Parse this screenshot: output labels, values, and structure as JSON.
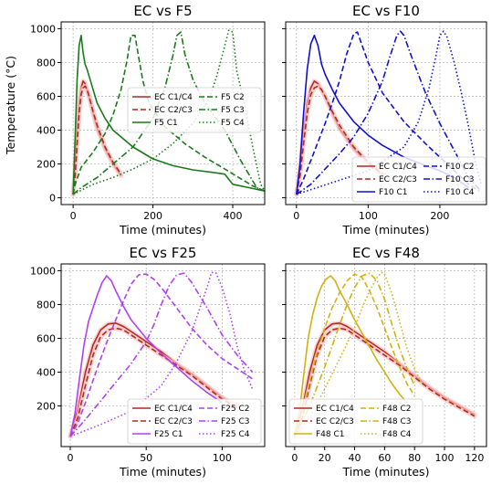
{
  "figure": {
    "ylabel": "Temperature (°C)"
  },
  "chart_data": [
    {
      "type": "line",
      "title": "EC vs F5",
      "xlabel": "Time (minutes)",
      "ylabel": "Temperature (°C)",
      "xlim": [
        -30,
        480
      ],
      "ylim": [
        -40,
        1040
      ],
      "xticks": [
        0,
        200,
        400
      ],
      "yticks": [
        0,
        200,
        400,
        600,
        800,
        1000
      ],
      "show_ylabel": true,
      "grid": true,
      "legend_position": "center-right",
      "series": [
        {
          "name": "EC C1/C4",
          "color": "#b22a1e",
          "dash": "solid",
          "highlight": true,
          "x": [
            0,
            5,
            10,
            15,
            20,
            25,
            30,
            40,
            50,
            60,
            80,
            100,
            120
          ],
          "y": [
            20,
            180,
            400,
            560,
            650,
            690,
            675,
            600,
            500,
            410,
            290,
            200,
            130
          ]
        },
        {
          "name": "EC C2/C3",
          "color": "#b22a1e",
          "dash": "dashed",
          "highlight": true,
          "x": [
            0,
            5,
            10,
            15,
            20,
            25,
            30,
            35,
            40,
            50,
            60,
            80,
            100,
            120
          ],
          "y": [
            20,
            130,
            320,
            500,
            610,
            650,
            660,
            640,
            600,
            510,
            430,
            300,
            210,
            140
          ]
        },
        {
          "name": "F5 C1",
          "color": "#1a7a1a",
          "dash": "solid",
          "x": [
            0,
            5,
            10,
            15,
            20,
            25,
            30,
            35,
            40,
            50,
            60,
            80,
            100,
            150,
            200,
            250,
            300,
            350,
            380,
            390,
            400,
            450,
            480
          ],
          "y": [
            20,
            350,
            700,
            900,
            960,
            860,
            790,
            760,
            720,
            640,
            560,
            470,
            400,
            300,
            230,
            190,
            165,
            150,
            140,
            110,
            80,
            55,
            40
          ]
        },
        {
          "name": "F5 C2",
          "color": "#1a7a1a",
          "dash": "dashed",
          "x": [
            0,
            5,
            20,
            50,
            80,
            100,
            120,
            135,
            145,
            155,
            165,
            175,
            190,
            230,
            280,
            330,
            380,
            450,
            480
          ],
          "y": [
            20,
            80,
            180,
            270,
            380,
            490,
            640,
            810,
            960,
            960,
            820,
            690,
            560,
            420,
            320,
            240,
            170,
            70,
            40
          ]
        },
        {
          "name": "F5 C3",
          "color": "#1a7a1a",
          "dash": "dashdot",
          "x": [
            0,
            20,
            60,
            100,
            150,
            200,
            230,
            250,
            260,
            270,
            280,
            300,
            330,
            380,
            420,
            460,
            480
          ],
          "y": [
            20,
            60,
            120,
            200,
            300,
            470,
            650,
            840,
            960,
            980,
            850,
            700,
            560,
            400,
            220,
            60,
            40
          ]
        },
        {
          "name": "F5 C4",
          "color": "#1a7a1a",
          "dash": "dotted",
          "x": [
            0,
            50,
            100,
            150,
            200,
            250,
            300,
            340,
            360,
            380,
            390,
            400,
            410,
            430,
            450,
            470,
            480
          ],
          "y": [
            20,
            80,
            120,
            170,
            230,
            320,
            440,
            580,
            720,
            900,
            990,
            980,
            750,
            550,
            300,
            80,
            40
          ]
        }
      ]
    },
    {
      "type": "line",
      "title": "EC vs F10",
      "xlabel": "Time (minutes)",
      "ylabel": "",
      "xlim": [
        -15,
        265
      ],
      "ylim": [
        -40,
        1040
      ],
      "xticks": [
        0,
        100,
        200
      ],
      "yticks": [
        0,
        200,
        400,
        600,
        800,
        1000
      ],
      "show_ylabel": false,
      "grid": true,
      "legend_position": "lower-right",
      "series": [
        {
          "name": "EC C1/C4",
          "color": "#b22a1e",
          "dash": "solid",
          "highlight": true,
          "x": [
            0,
            5,
            10,
            15,
            20,
            25,
            30,
            40,
            50,
            60,
            80,
            100,
            120
          ],
          "y": [
            20,
            180,
            400,
            560,
            650,
            690,
            675,
            600,
            500,
            410,
            290,
            200,
            130
          ]
        },
        {
          "name": "EC C2/C3",
          "color": "#b22a1e",
          "dash": "dashed",
          "highlight": true,
          "x": [
            0,
            5,
            10,
            15,
            20,
            25,
            30,
            35,
            40,
            50,
            60,
            80,
            100,
            120
          ],
          "y": [
            20,
            130,
            320,
            500,
            610,
            650,
            660,
            640,
            600,
            510,
            430,
            300,
            210,
            140
          ]
        },
        {
          "name": "F10 C1",
          "color": "#1010d0",
          "dash": "solid",
          "x": [
            0,
            5,
            10,
            15,
            20,
            25,
            30,
            35,
            40,
            50,
            60,
            80,
            100,
            120,
            150,
            180,
            200,
            220,
            240
          ],
          "y": [
            20,
            200,
            500,
            760,
            910,
            960,
            900,
            790,
            730,
            640,
            560,
            450,
            370,
            310,
            240,
            190,
            160,
            120,
            60
          ]
        },
        {
          "name": "F10 C2",
          "color": "#1010d0",
          "dash": "dashed",
          "x": [
            0,
            10,
            20,
            30,
            40,
            50,
            60,
            70,
            80,
            85,
            90,
            100,
            120,
            150,
            180,
            210,
            240,
            255
          ],
          "y": [
            20,
            110,
            220,
            330,
            440,
            560,
            690,
            850,
            970,
            980,
            920,
            800,
            620,
            450,
            320,
            200,
            80,
            40
          ]
        },
        {
          "name": "F10 C3",
          "color": "#1010d0",
          "dash": "dashdot",
          "x": [
            0,
            20,
            40,
            60,
            80,
            100,
            120,
            130,
            140,
            145,
            150,
            160,
            180,
            200,
            220,
            240,
            255
          ],
          "y": [
            20,
            80,
            170,
            260,
            360,
            500,
            690,
            830,
            960,
            985,
            960,
            840,
            620,
            440,
            280,
            120,
            50
          ]
        },
        {
          "name": "F10 C4",
          "color": "#1010d0",
          "dash": "dotted",
          "x": [
            0,
            50,
            100,
            150,
            170,
            185,
            195,
            200,
            205,
            210,
            220,
            230,
            240,
            250,
            258
          ],
          "y": [
            20,
            90,
            160,
            300,
            450,
            650,
            850,
            960,
            985,
            950,
            800,
            620,
            420,
            200,
            70
          ]
        }
      ]
    },
    {
      "type": "line",
      "title": "EC vs F25",
      "xlabel": "Time (minutes)",
      "ylabel": "",
      "xlim": [
        -6,
        128
      ],
      "ylim": [
        -40,
        1040
      ],
      "xticks": [
        0,
        50,
        100
      ],
      "yticks": [
        200,
        400,
        600,
        800,
        1000
      ],
      "show_ylabel": true,
      "grid": true,
      "legend_position": "lower-right",
      "series": [
        {
          "name": "EC C1/C4",
          "color": "#b22a1e",
          "dash": "solid",
          "highlight": true,
          "x": [
            0,
            5,
            10,
            15,
            20,
            25,
            30,
            35,
            40,
            50,
            60,
            70,
            80,
            90,
            100,
            110
          ],
          "y": [
            20,
            180,
            400,
            560,
            650,
            685,
            690,
            670,
            640,
            580,
            520,
            450,
            390,
            320,
            250,
            200
          ]
        },
        {
          "name": "EC C2/C3",
          "color": "#b22a1e",
          "dash": "dashed",
          "highlight": true,
          "x": [
            0,
            5,
            10,
            15,
            20,
            25,
            30,
            35,
            40,
            50,
            60,
            70,
            80,
            90,
            100,
            110
          ],
          "y": [
            20,
            130,
            320,
            500,
            610,
            650,
            660,
            650,
            620,
            560,
            500,
            440,
            380,
            310,
            240,
            190
          ]
        },
        {
          "name": "F25 C1",
          "color": "#b040f0",
          "dash": "solid",
          "x": [
            0,
            3,
            6,
            9,
            12,
            15,
            18,
            21,
            24,
            27,
            30,
            35,
            40,
            50,
            60,
            70,
            80,
            90,
            100
          ],
          "y": [
            20,
            150,
            360,
            560,
            700,
            780,
            860,
            930,
            970,
            940,
            880,
            790,
            710,
            600,
            510,
            430,
            350,
            280,
            220
          ]
        },
        {
          "name": "F25 C2",
          "color": "#b040f0",
          "dash": "dashed",
          "x": [
            0,
            5,
            10,
            15,
            20,
            25,
            30,
            35,
            40,
            45,
            50,
            55,
            60,
            70,
            80,
            90,
            100,
            110,
            120
          ],
          "y": [
            20,
            100,
            220,
            350,
            480,
            600,
            710,
            820,
            920,
            975,
            980,
            950,
            900,
            780,
            660,
            560,
            480,
            420,
            360
          ]
        },
        {
          "name": "F25 C3",
          "color": "#b040f0",
          "dash": "dashdot",
          "x": [
            0,
            10,
            20,
            30,
            40,
            50,
            55,
            60,
            65,
            70,
            75,
            80,
            90,
            100,
            110,
            120
          ],
          "y": [
            20,
            120,
            230,
            340,
            450,
            580,
            680,
            800,
            910,
            975,
            985,
            930,
            780,
            620,
            500,
            400
          ]
        },
        {
          "name": "F25 C4",
          "color": "#b040f0",
          "dash": "dotted",
          "x": [
            0,
            20,
            40,
            60,
            70,
            80,
            85,
            90,
            93,
            96,
            100,
            105,
            110,
            115,
            120
          ],
          "y": [
            20,
            90,
            170,
            320,
            460,
            640,
            770,
            900,
            990,
            985,
            900,
            750,
            550,
            400,
            300
          ]
        }
      ]
    },
    {
      "type": "line",
      "title": "EC vs F48",
      "xlabel": "Time (minutes)",
      "ylabel": "",
      "xlim": [
        -6,
        128
      ],
      "ylim": [
        -40,
        1040
      ],
      "xticks": [
        0,
        20,
        40,
        60,
        80,
        100,
        120
      ],
      "yticks": [
        200,
        400,
        600,
        800,
        1000
      ],
      "show_ylabel": false,
      "grid": true,
      "legend_position": "lower-left",
      "series": [
        {
          "name": "EC C1/C4",
          "color": "#b22a1e",
          "dash": "solid",
          "highlight": true,
          "x": [
            0,
            5,
            10,
            15,
            20,
            25,
            30,
            35,
            40,
            50,
            60,
            70,
            80,
            90,
            100,
            110,
            120
          ],
          "y": [
            20,
            180,
            400,
            560,
            650,
            685,
            690,
            670,
            640,
            580,
            520,
            450,
            380,
            310,
            250,
            200,
            150
          ]
        },
        {
          "name": "EC C2/C3",
          "color": "#b22a1e",
          "dash": "dashed",
          "highlight": true,
          "x": [
            0,
            5,
            10,
            15,
            20,
            25,
            30,
            35,
            40,
            50,
            60,
            70,
            80,
            90,
            100,
            110,
            120
          ],
          "y": [
            20,
            130,
            320,
            500,
            610,
            650,
            660,
            650,
            620,
            560,
            500,
            440,
            370,
            300,
            240,
            190,
            140
          ]
        },
        {
          "name": "F48 C1",
          "color": "#d4b00e",
          "dash": "solid",
          "x": [
            0,
            3,
            6,
            9,
            12,
            15,
            18,
            21,
            24,
            27,
            30,
            35,
            40,
            45,
            50,
            55,
            60,
            65,
            70,
            75
          ],
          "y": [
            20,
            150,
            380,
            600,
            740,
            840,
            910,
            950,
            970,
            940,
            880,
            800,
            710,
            630,
            550,
            470,
            400,
            330,
            270,
            220
          ]
        },
        {
          "name": "F48 C2",
          "color": "#d4b00e",
          "dash": "dashed",
          "x": [
            0,
            5,
            10,
            15,
            20,
            25,
            30,
            35,
            40,
            45,
            50,
            55,
            60,
            65,
            70,
            75,
            80
          ],
          "y": [
            20,
            150,
            340,
            520,
            660,
            780,
            870,
            940,
            980,
            960,
            880,
            780,
            660,
            540,
            430,
            330,
            260
          ]
        },
        {
          "name": "F48 C3",
          "color": "#d4b00e",
          "dash": "dashdot",
          "x": [
            0,
            10,
            20,
            30,
            35,
            40,
            45,
            50,
            55,
            60,
            65,
            70,
            75,
            80
          ],
          "y": [
            20,
            200,
            430,
            680,
            800,
            900,
            970,
            985,
            940,
            830,
            680,
            540,
            420,
            320
          ]
        },
        {
          "name": "F48 C4",
          "color": "#d4b00e",
          "dash": "dotted",
          "x": [
            0,
            10,
            20,
            30,
            40,
            45,
            50,
            55,
            58,
            60,
            65,
            70,
            75,
            80,
            85
          ],
          "y": [
            20,
            130,
            300,
            480,
            660,
            780,
            880,
            960,
            990,
            980,
            860,
            700,
            540,
            420,
            330
          ]
        }
      ]
    }
  ]
}
